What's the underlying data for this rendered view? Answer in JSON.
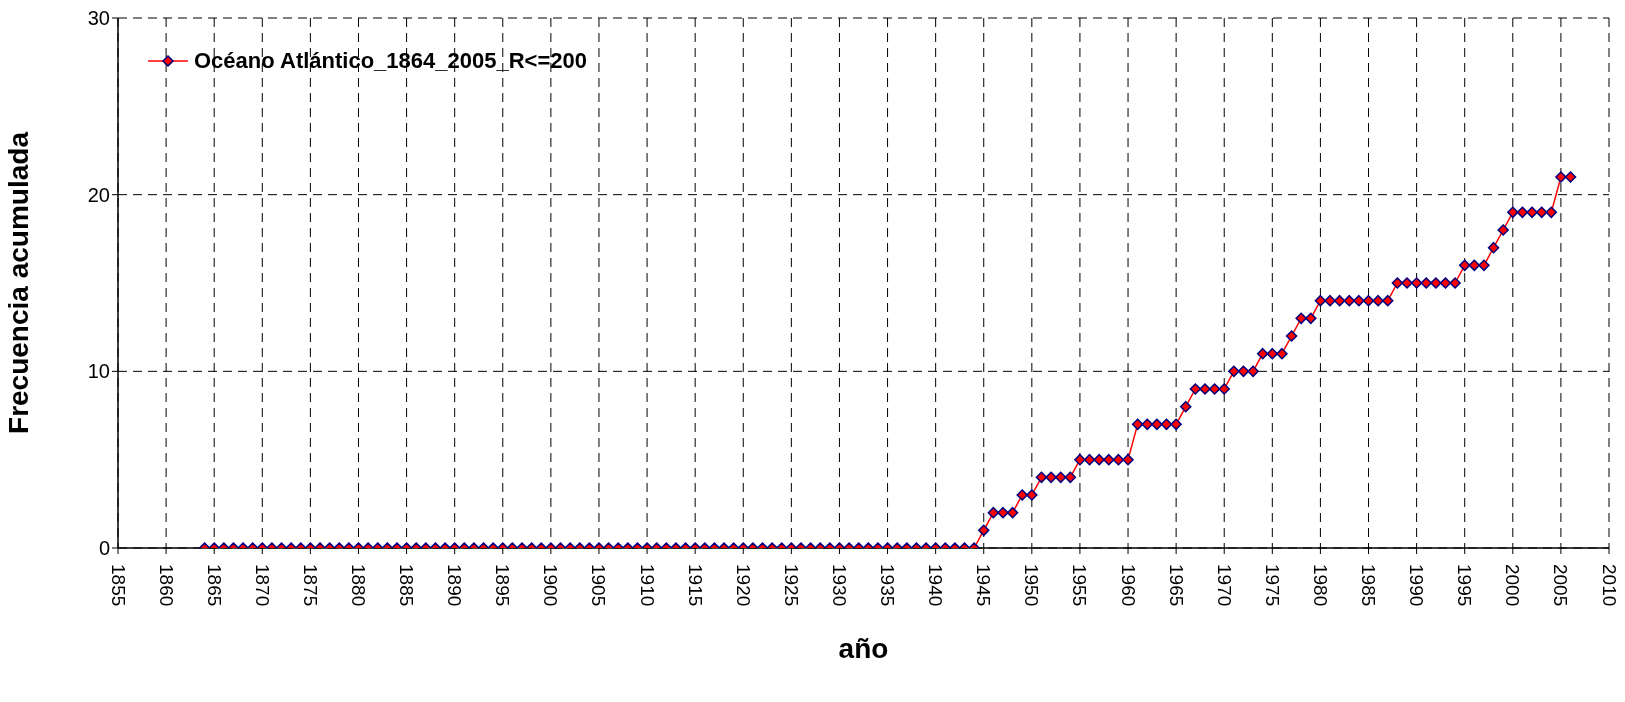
{
  "chart_data": {
    "type": "line",
    "xlabel": "año",
    "ylabel": "Frecuencia acumulada",
    "x": [
      1864,
      1865,
      1866,
      1867,
      1868,
      1869,
      1870,
      1871,
      1872,
      1873,
      1874,
      1875,
      1876,
      1877,
      1878,
      1879,
      1880,
      1881,
      1882,
      1883,
      1884,
      1885,
      1886,
      1887,
      1888,
      1889,
      1890,
      1891,
      1892,
      1893,
      1894,
      1895,
      1896,
      1897,
      1898,
      1899,
      1900,
      1901,
      1902,
      1903,
      1904,
      1905,
      1906,
      1907,
      1908,
      1909,
      1910,
      1911,
      1912,
      1913,
      1914,
      1915,
      1916,
      1917,
      1918,
      1919,
      1920,
      1921,
      1922,
      1923,
      1924,
      1925,
      1926,
      1927,
      1928,
      1929,
      1930,
      1931,
      1932,
      1933,
      1934,
      1935,
      1936,
      1937,
      1938,
      1939,
      1940,
      1941,
      1942,
      1943,
      1944,
      1945,
      1946,
      1947,
      1948,
      1949,
      1950,
      1951,
      1952,
      1953,
      1954,
      1955,
      1956,
      1957,
      1958,
      1959,
      1960,
      1961,
      1962,
      1963,
      1964,
      1965,
      1966,
      1967,
      1968,
      1969,
      1970,
      1971,
      1972,
      1973,
      1974,
      1975,
      1976,
      1977,
      1978,
      1979,
      1980,
      1981,
      1982,
      1983,
      1984,
      1985,
      1986,
      1987,
      1988,
      1989,
      1990,
      1991,
      1992,
      1993,
      1994,
      1995,
      1996,
      1997,
      1998,
      1999,
      2000,
      2001,
      2002,
      2003,
      2004,
      2005,
      2006
    ],
    "series": [
      {
        "name": "Océano Atlántico_1864_2005_R<=200",
        "color": "#ff0000",
        "values": [
          0,
          0,
          0,
          0,
          0,
          0,
          0,
          0,
          0,
          0,
          0,
          0,
          0,
          0,
          0,
          0,
          0,
          0,
          0,
          0,
          0,
          0,
          0,
          0,
          0,
          0,
          0,
          0,
          0,
          0,
          0,
          0,
          0,
          0,
          0,
          0,
          0,
          0,
          0,
          0,
          0,
          0,
          0,
          0,
          0,
          0,
          0,
          0,
          0,
          0,
          0,
          0,
          0,
          0,
          0,
          0,
          0,
          0,
          0,
          0,
          0,
          0,
          0,
          0,
          0,
          0,
          0,
          0,
          0,
          0,
          0,
          0,
          0,
          0,
          0,
          0,
          0,
          0,
          0,
          0,
          0,
          1,
          2,
          2,
          2,
          3,
          3,
          4,
          4,
          4,
          4,
          5,
          5,
          5,
          5,
          5,
          5,
          7,
          7,
          7,
          7,
          7,
          8,
          9,
          9,
          9,
          9,
          10,
          10,
          10,
          11,
          11,
          11,
          12,
          13,
          13,
          14,
          14,
          14,
          14,
          14,
          14,
          14,
          14,
          15,
          15,
          15,
          15,
          15,
          15,
          15,
          16,
          16,
          16,
          17,
          18,
          19,
          19,
          19,
          19,
          19,
          21,
          21
        ]
      }
    ],
    "xlim": [
      1855,
      2010
    ],
    "xticks": [
      1855,
      1860,
      1865,
      1870,
      1875,
      1880,
      1885,
      1890,
      1895,
      1900,
      1905,
      1910,
      1915,
      1920,
      1925,
      1930,
      1935,
      1940,
      1945,
      1950,
      1955,
      1960,
      1965,
      1970,
      1975,
      1980,
      1985,
      1990,
      1995,
      2000,
      2005,
      2010
    ],
    "ylim": [
      0,
      30
    ],
    "yticks": [
      0,
      10,
      20,
      30
    ],
    "grid": true,
    "legend": "top left",
    "marker": "diamond",
    "line_style": "solid"
  }
}
